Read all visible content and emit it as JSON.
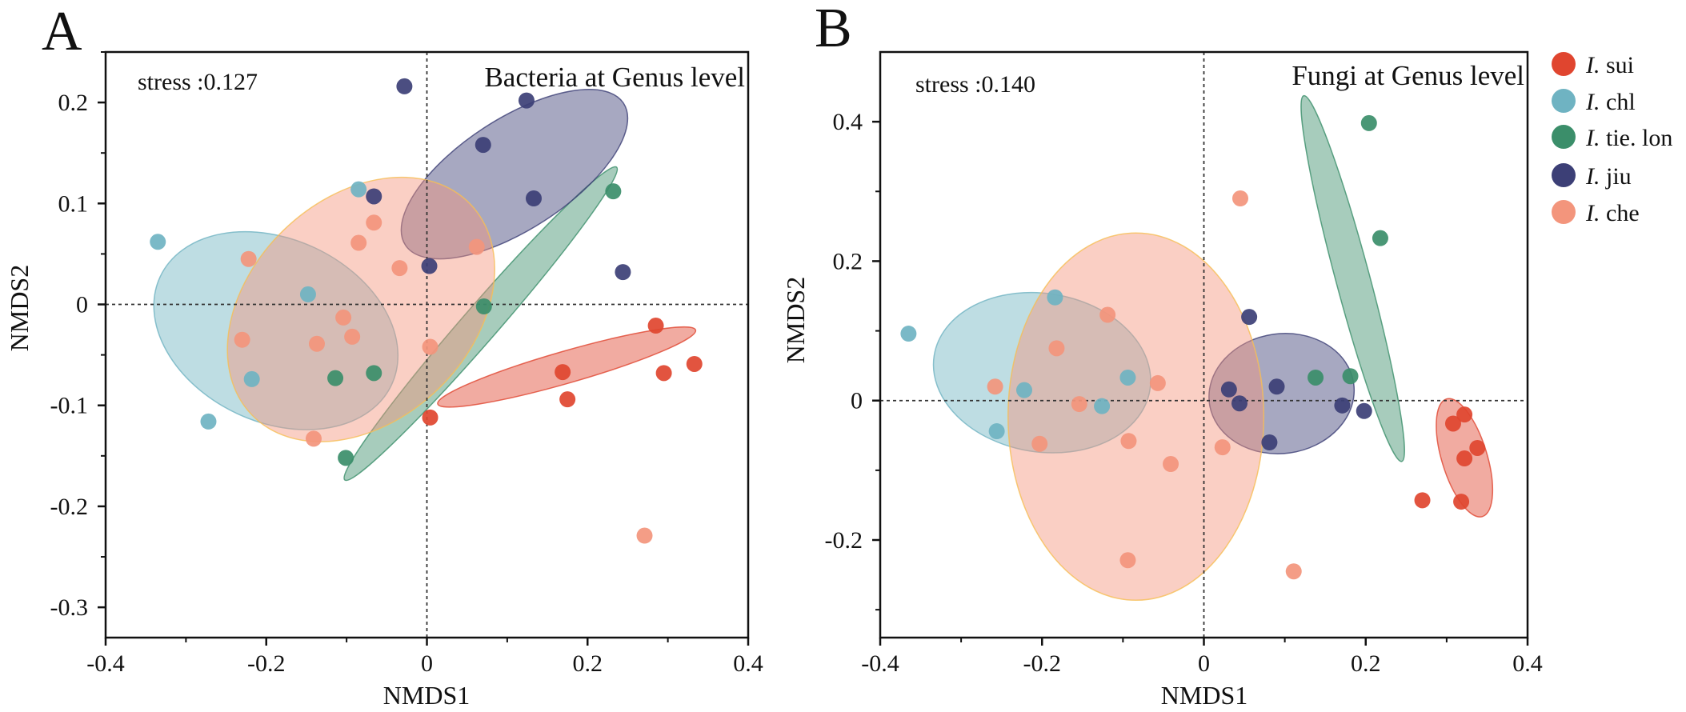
{
  "figure": {
    "legend": [
      {
        "key": "sui",
        "prefix": "I.",
        "name": " sui",
        "color": "#E0452F"
      },
      {
        "key": "chl",
        "prefix": "I.",
        "name": " chl",
        "color": "#6FB3C2"
      },
      {
        "key": "tie",
        "prefix": "I.",
        "name": " tie. lon",
        "color": "#3B8E6A"
      },
      {
        "key": "jiu",
        "prefix": "I.",
        "name": " jiu",
        "color": "#3C3F76"
      },
      {
        "key": "che",
        "prefix": "I.",
        "name": " che",
        "color": "#F3957C"
      }
    ]
  },
  "chart_data": [
    {
      "type": "scatter",
      "panel": "A",
      "title": "Bacteria at Genus level",
      "annotation": "stress :0.127",
      "xlabel": "NMDS1",
      "ylabel": "NMDS2",
      "xlim": [
        -0.4,
        0.4
      ],
      "ylim": [
        -0.33,
        0.25
      ],
      "xticks": [
        -0.4,
        -0.2,
        0,
        0.2,
        0.4
      ],
      "xtick_labels": [
        "-0.4",
        "-0.2",
        "0",
        "0.2",
        "0.4"
      ],
      "yticks": [
        -0.3,
        -0.2,
        -0.1,
        0,
        0.1,
        0.2
      ],
      "ytick_labels": [
        "-0.3",
        "-0.2",
        "-0.1",
        "0",
        "0.1",
        "0.2"
      ],
      "series": [
        {
          "name": "I. sui",
          "key": "sui",
          "points": [
            [
              0.285,
              -0.021
            ],
            [
              0.333,
              -0.059
            ],
            [
              0.295,
              -0.068
            ],
            [
              0.169,
              -0.067
            ],
            [
              0.175,
              -0.094
            ],
            [
              0.004,
              -0.112
            ]
          ]
        },
        {
          "name": "I. chl",
          "key": "chl",
          "points": [
            [
              -0.335,
              0.062
            ],
            [
              -0.272,
              -0.116
            ],
            [
              -0.218,
              -0.074
            ],
            [
              -0.148,
              0.01
            ],
            [
              -0.085,
              0.114
            ]
          ]
        },
        {
          "name": "I. tie. lon",
          "key": "tie",
          "points": [
            [
              0.232,
              0.112
            ],
            [
              0.071,
              -0.002
            ],
            [
              -0.066,
              -0.068
            ],
            [
              -0.114,
              -0.073
            ],
            [
              -0.101,
              -0.152
            ]
          ]
        },
        {
          "name": "I. jiu",
          "key": "jiu",
          "points": [
            [
              -0.028,
              0.216
            ],
            [
              0.124,
              0.202
            ],
            [
              0.07,
              0.158
            ],
            [
              0.133,
              0.105
            ],
            [
              -0.066,
              0.107
            ],
            [
              0.003,
              0.038
            ],
            [
              0.244,
              0.032
            ]
          ]
        },
        {
          "name": "I. che",
          "key": "che",
          "points": [
            [
              -0.066,
              0.081
            ],
            [
              -0.222,
              0.045
            ],
            [
              -0.085,
              0.061
            ],
            [
              -0.034,
              0.036
            ],
            [
              0.062,
              0.057
            ],
            [
              -0.104,
              -0.013
            ],
            [
              -0.137,
              -0.039
            ],
            [
              -0.093,
              -0.032
            ],
            [
              -0.23,
              -0.035
            ],
            [
              0.004,
              -0.042
            ],
            [
              -0.141,
              -0.133
            ],
            [
              0.271,
              -0.229
            ]
          ]
        }
      ],
      "ellipses": [
        {
          "key": "sui",
          "cx": 0.174,
          "cy": -0.062,
          "rx": 0.167,
          "ry": 0.02,
          "angle_deg": 16
        },
        {
          "key": "chl",
          "cx": -0.188,
          "cy": -0.026,
          "rx": 0.159,
          "ry": 0.114,
          "angle_deg": -25
        },
        {
          "key": "tie",
          "cx": 0.067,
          "cy": -0.019,
          "rx": 0.258,
          "ry": 0.022,
          "angle_deg": 49
        },
        {
          "key": "jiu",
          "cx": 0.109,
          "cy": 0.129,
          "rx": 0.162,
          "ry": 0.069,
          "angle_deg": 33
        },
        {
          "key": "che",
          "cx": -0.082,
          "cy": -0.005,
          "rx": 0.189,
          "ry": 0.138,
          "angle_deg": 44
        }
      ]
    },
    {
      "type": "scatter",
      "panel": "B",
      "title": "Fungi at Genus level",
      "annotation": "stress :0.140",
      "xlabel": "NMDS1",
      "ylabel": "NMDS2",
      "xlim": [
        -0.4,
        0.4
      ],
      "ylim": [
        -0.34,
        0.5
      ],
      "xticks": [
        -0.4,
        -0.2,
        0,
        0.2,
        0.4
      ],
      "xtick_labels": [
        "-0.4",
        "-0.2",
        "0",
        "0.2",
        "0.4"
      ],
      "yticks": [
        -0.2,
        0,
        0.2,
        0.4
      ],
      "ytick_labels": [
        "-0.2",
        "0",
        "0.2",
        "0.4"
      ],
      "series": [
        {
          "name": "I. sui",
          "key": "sui",
          "points": [
            [
              0.322,
              -0.02
            ],
            [
              0.308,
              -0.033
            ],
            [
              0.338,
              -0.068
            ],
            [
              0.322,
              -0.083
            ],
            [
              0.27,
              -0.143
            ],
            [
              0.318,
              -0.145
            ]
          ]
        },
        {
          "name": "I. chl",
          "key": "chl",
          "points": [
            [
              -0.365,
              0.096
            ],
            [
              -0.256,
              -0.044
            ],
            [
              -0.222,
              0.015
            ],
            [
              -0.094,
              0.033
            ],
            [
              -0.126,
              -0.008
            ],
            [
              -0.184,
              0.148
            ]
          ]
        },
        {
          "name": "I. tie. lon",
          "key": "tie",
          "points": [
            [
              0.204,
              0.398
            ],
            [
              0.218,
              0.233
            ],
            [
              0.181,
              0.035
            ],
            [
              0.138,
              0.033
            ]
          ]
        },
        {
          "name": "I. jiu",
          "key": "jiu",
          "points": [
            [
              0.056,
              0.12
            ],
            [
              0.09,
              0.02
            ],
            [
              0.031,
              0.016
            ],
            [
              0.044,
              -0.004
            ],
            [
              0.171,
              -0.007
            ],
            [
              0.198,
              -0.015
            ],
            [
              0.081,
              -0.06
            ]
          ]
        },
        {
          "name": "I. che",
          "key": "che",
          "points": [
            [
              0.045,
              0.29
            ],
            [
              -0.119,
              0.123
            ],
            [
              -0.182,
              0.075
            ],
            [
              -0.258,
              0.02
            ],
            [
              -0.154,
              -0.005
            ],
            [
              -0.057,
              0.025
            ],
            [
              -0.093,
              -0.058
            ],
            [
              -0.203,
              -0.062
            ],
            [
              0.023,
              -0.067
            ],
            [
              -0.041,
              -0.091
            ],
            [
              -0.094,
              -0.229
            ],
            [
              0.111,
              -0.245
            ]
          ]
        }
      ],
      "ellipses": [
        {
          "key": "sui",
          "cx": 0.322,
          "cy": -0.082,
          "rx": 0.076,
          "ry": 0.028,
          "angle_deg": -73
        },
        {
          "key": "chl",
          "cx": -0.2,
          "cy": 0.04,
          "rx": 0.135,
          "ry": 0.098,
          "angle_deg": -9
        },
        {
          "key": "tie",
          "cx": 0.184,
          "cy": 0.175,
          "rx": 0.234,
          "ry": 0.021,
          "angle_deg": -75
        },
        {
          "key": "jiu",
          "cx": 0.096,
          "cy": 0.01,
          "rx": 0.09,
          "ry": 0.074,
          "angle_deg": 8
        },
        {
          "key": "che",
          "cx": -0.084,
          "cy": -0.023,
          "rx": 0.158,
          "ry": 0.227,
          "angle_deg": 0
        }
      ]
    }
  ]
}
